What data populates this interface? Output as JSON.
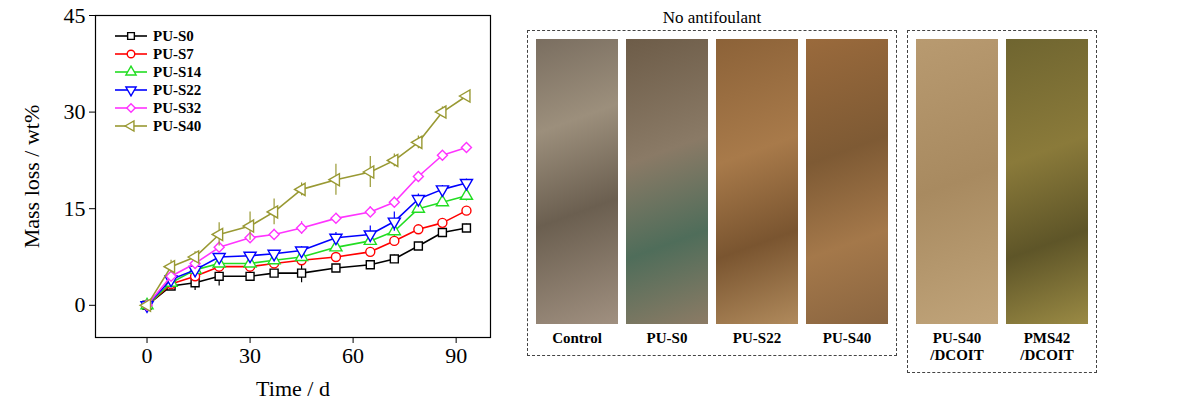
{
  "chart_data": {
    "type": "line",
    "x_label": "Time / d",
    "y_label": "Mass loss / wt%",
    "x": [
      0,
      7,
      14,
      21,
      30,
      37,
      45,
      55,
      65,
      72,
      79,
      86,
      93
    ],
    "xlim": [
      -15,
      100
    ],
    "xticks": [
      0,
      30,
      60,
      90
    ],
    "ylim": [
      -5,
      45
    ],
    "yticks": [
      0,
      15,
      30,
      45
    ],
    "legend": "top-left",
    "series": [
      {
        "name": "PU-S0",
        "color": "#000000",
        "marker": "square",
        "values": [
          0,
          3,
          3.5,
          4.5,
          4.5,
          5,
          5,
          5.8,
          6.3,
          7.2,
          9.2,
          11.3,
          12
        ],
        "errors": [
          0,
          0.4,
          1.2,
          1.5,
          0.8,
          0.5,
          1.5,
          0.4,
          0.4,
          0.6,
          0.5,
          0.5,
          0.6
        ]
      },
      {
        "name": "PU-S7",
        "color": "#ff0000",
        "marker": "circle",
        "values": [
          0,
          3.3,
          4.5,
          6,
          6,
          6.5,
          7,
          7.5,
          8.3,
          10,
          11.8,
          12.8,
          14.7
        ],
        "errors": [
          0,
          0.4,
          0.5,
          0.5,
          0.5,
          0.5,
          0.5,
          0.5,
          0.5,
          0.5,
          0.5,
          0.6,
          0.4
        ]
      },
      {
        "name": "PU-S14",
        "color": "#22dd22",
        "marker": "triangle-up",
        "values": [
          0,
          3.5,
          5.5,
          6.5,
          6.5,
          7,
          7.5,
          9,
          10,
          11.5,
          15,
          16,
          17
        ],
        "errors": [
          0,
          0.5,
          0.5,
          0.6,
          0.5,
          0.5,
          0.5,
          0.5,
          0.6,
          0.8,
          0.6,
          0.6,
          0.8
        ]
      },
      {
        "name": "PU-S22",
        "color": "#0000ff",
        "marker": "triangle-down",
        "values": [
          0,
          4,
          5.5,
          7.5,
          7.7,
          8,
          8.5,
          10.5,
          11,
          13,
          16.5,
          18,
          19
        ],
        "errors": [
          0,
          0.5,
          0.5,
          0.6,
          0.5,
          0.5,
          0.6,
          0.8,
          1.3,
          1.5,
          0.8,
          0.6,
          0.6
        ]
      },
      {
        "name": "PU-S32",
        "color": "#ff33ff",
        "marker": "diamond",
        "values": [
          0,
          4.5,
          6.5,
          9,
          10.5,
          11,
          12,
          13.5,
          14.5,
          16,
          20,
          23.3,
          24.5
        ],
        "errors": [
          0,
          0.5,
          0.6,
          0.8,
          0.8,
          0.8,
          1.0,
          0.8,
          0.8,
          0.8,
          0.6,
          0.5,
          0.4
        ]
      },
      {
        "name": "PU-S40",
        "color": "#999933",
        "marker": "triangle-left",
        "values": [
          0,
          6,
          7.5,
          11,
          12.3,
          14.5,
          18,
          19.5,
          20.7,
          22.5,
          25.3,
          30,
          32.5
        ],
        "errors": [
          0,
          1.0,
          0.8,
          1.8,
          2.2,
          2.0,
          1.0,
          2.4,
          2.4,
          1.0,
          1.0,
          0.8,
          0.5
        ]
      }
    ]
  },
  "photo_panels": [
    {
      "title": "No antifoulant",
      "photos": [
        "Control",
        "PU-S0",
        "PU-S22",
        "PU-S40"
      ]
    },
    {
      "photos": [
        "PU-S40 /DCOIT",
        "PMS42 /DCOIT"
      ]
    }
  ]
}
